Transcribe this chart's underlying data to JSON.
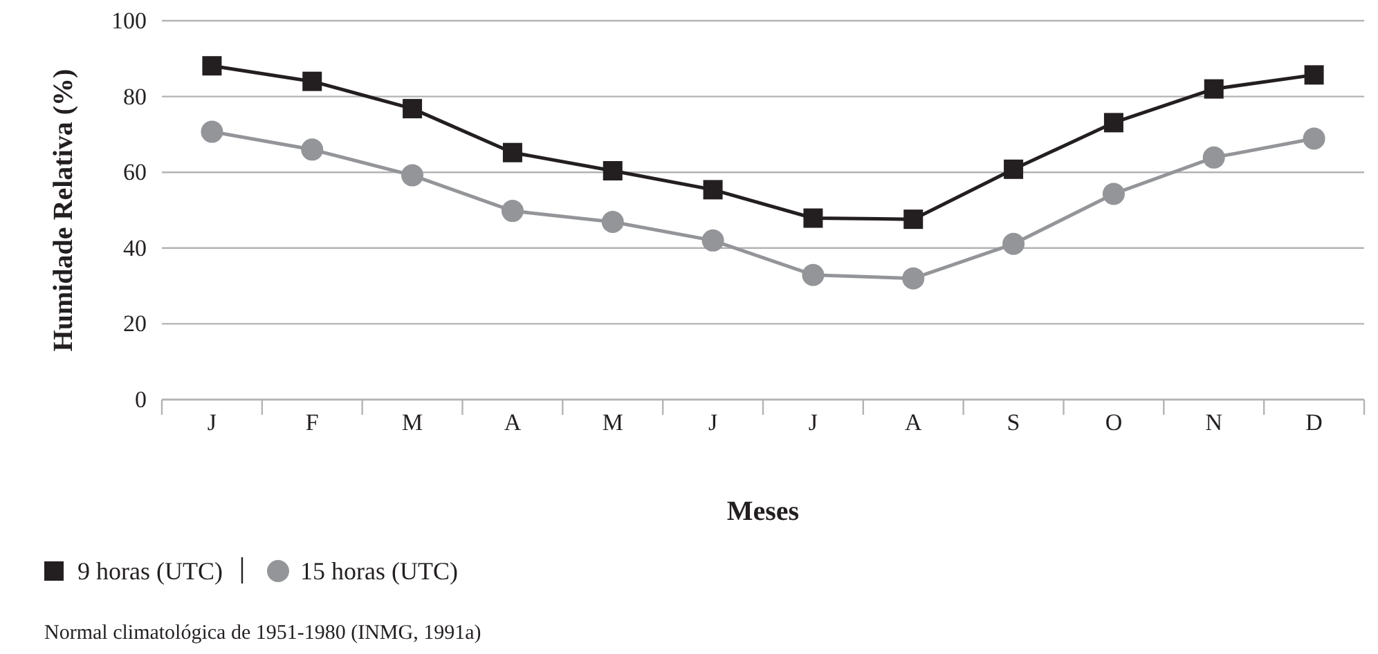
{
  "chart_data": {
    "type": "line",
    "xlabel": "Meses",
    "ylabel": "Humidade Relativa (%)",
    "categories": [
      "J",
      "F",
      "M",
      "A",
      "M",
      "J",
      "J",
      "A",
      "S",
      "O",
      "N",
      "D"
    ],
    "series": [
      {
        "name": "9 horas (UTC)",
        "color": "#231f20",
        "marker": "square",
        "values": [
          88.1,
          84,
          76.8,
          65.2,
          60.4,
          55.4,
          47.9,
          47.6,
          60.8,
          73.1,
          82,
          85.7
        ]
      },
      {
        "name": "15 horas (UTC)",
        "color": "#939598",
        "marker": "circle",
        "values": [
          70.7,
          66,
          59.2,
          49.8,
          46.9,
          42,
          32.9,
          32,
          41.1,
          54.3,
          63.9,
          68.9
        ]
      }
    ],
    "ylim": [
      0,
      100
    ],
    "yticks": [
      0,
      20,
      40,
      60,
      80,
      100
    ],
    "grid": "y",
    "legend": "bottom left",
    "annotations": [
      "Normal climatológica de 1951-1980 (INMG, 1991a)"
    ]
  }
}
